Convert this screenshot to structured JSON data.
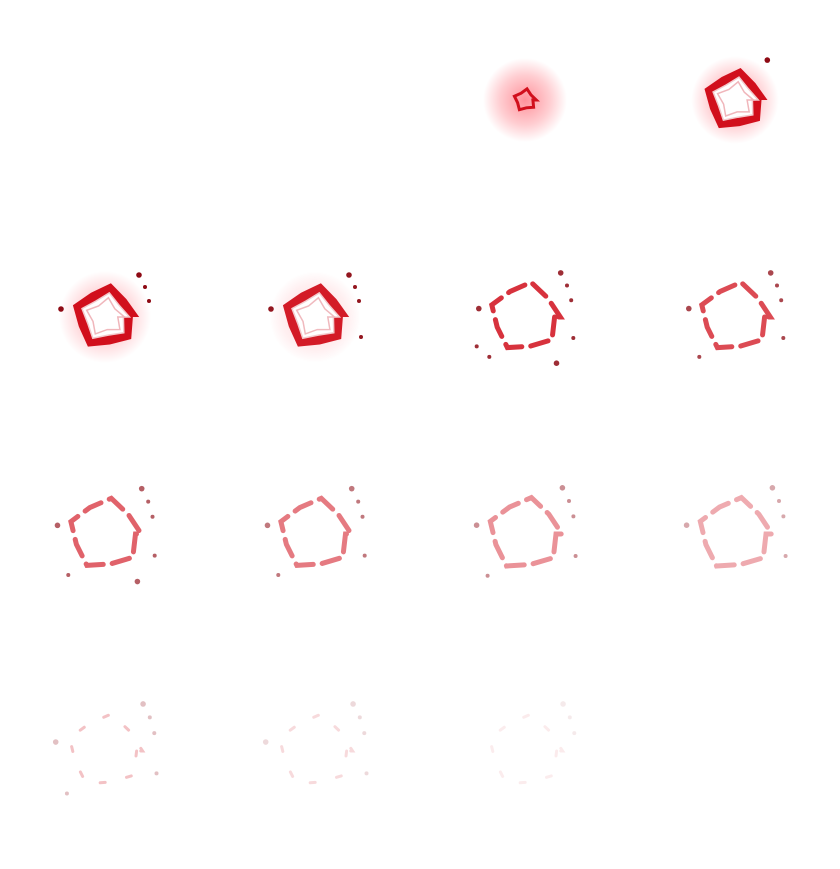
{
  "sprite_sheet": {
    "columns": 4,
    "rows": 4,
    "effect_color": "#d10f1c",
    "dark_color": "#8e0a14",
    "glow_color": "#ff3a4a",
    "frames": [
      {
        "stage": "empty",
        "glow": 0,
        "scale": 0,
        "fade": 0,
        "drops": 0
      },
      {
        "stage": "empty",
        "glow": 0,
        "scale": 0,
        "fade": 0,
        "drops": 0
      },
      {
        "stage": "spark",
        "glow": 1.0,
        "scale": 0.22,
        "fade": 1.0,
        "drops": 0
      },
      {
        "stage": "burst",
        "glow": 0.9,
        "scale": 0.95,
        "fade": 1.0,
        "drops": 1
      },
      {
        "stage": "burst",
        "glow": 0.75,
        "scale": 1.0,
        "fade": 1.0,
        "drops": 4
      },
      {
        "stage": "burst",
        "glow": 0.45,
        "scale": 1.0,
        "fade": 0.95,
        "drops": 5
      },
      {
        "stage": "ring",
        "glow": 0,
        "scale": 1.05,
        "fade": 0.85,
        "drops": 8
      },
      {
        "stage": "ring",
        "glow": 0,
        "scale": 1.05,
        "fade": 0.75,
        "drops": 6
      },
      {
        "stage": "ring",
        "glow": 0,
        "scale": 1.08,
        "fade": 0.65,
        "drops": 7
      },
      {
        "stage": "ring",
        "glow": 0,
        "scale": 1.08,
        "fade": 0.55,
        "drops": 6
      },
      {
        "stage": "ring",
        "glow": 0,
        "scale": 1.1,
        "fade": 0.45,
        "drops": 6
      },
      {
        "stage": "ring",
        "glow": 0,
        "scale": 1.1,
        "fade": 0.35,
        "drops": 5
      },
      {
        "stage": "fragments",
        "glow": 0,
        "scale": 1.12,
        "fade": 0.25,
        "drops": 6
      },
      {
        "stage": "fragments",
        "glow": 0,
        "scale": 1.12,
        "fade": 0.15,
        "drops": 5
      },
      {
        "stage": "fragments",
        "glow": 0,
        "scale": 1.12,
        "fade": 0.08,
        "drops": 3
      },
      {
        "stage": "empty",
        "glow": 0,
        "scale": 0,
        "fade": 0,
        "drops": 0
      }
    ]
  }
}
